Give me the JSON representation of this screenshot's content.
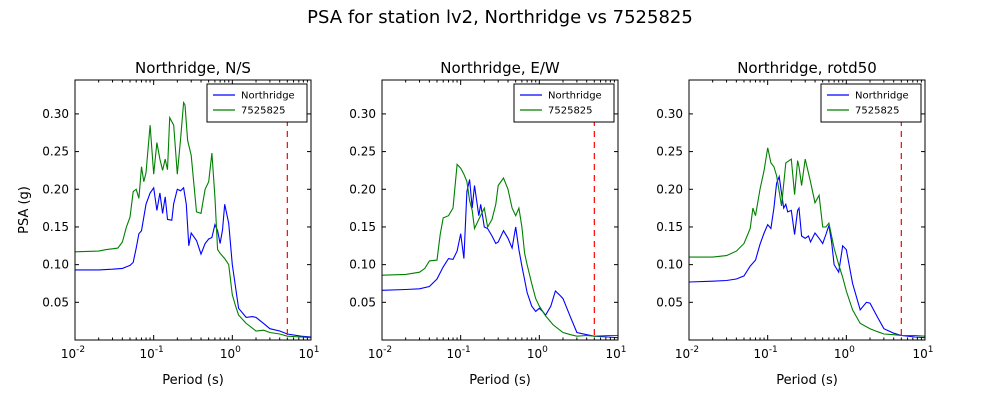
{
  "suptitle": "PSA for station lv2, Northridge vs 7525825",
  "ylabel": "PSA (g)",
  "xlabel": "Period (s)",
  "colors": {
    "series1": "#0000ff",
    "series2": "#008000",
    "marker": "#ff0000"
  },
  "series_names": [
    "Northridge",
    "7525825"
  ],
  "chart_data": [
    {
      "type": "line",
      "title": "Northridge, N/S",
      "xlabel": "Period (s)",
      "ylabel": "PSA (g)",
      "xscale": "log",
      "xlim": [
        0.01,
        10
      ],
      "ylim": [
        0.0,
        0.345
      ],
      "xticks": [
        0.01,
        0.1,
        1,
        10
      ],
      "yticks": [
        0.05,
        0.1,
        0.15,
        0.2,
        0.25,
        0.3
      ],
      "ytick_labels": [
        "0.05",
        "0.10",
        "0.15",
        "0.20",
        "0.25",
        "0.30"
      ],
      "legend": "top-right",
      "marker_x": 5.0,
      "series": [
        {
          "name": "Northridge",
          "x": [
            0.01,
            0.02,
            0.03,
            0.04,
            0.05,
            0.055,
            0.06,
            0.065,
            0.07,
            0.08,
            0.09,
            0.1,
            0.11,
            0.12,
            0.13,
            0.14,
            0.15,
            0.17,
            0.18,
            0.2,
            0.22,
            0.24,
            0.26,
            0.28,
            0.3,
            0.35,
            0.4,
            0.45,
            0.5,
            0.55,
            0.6,
            0.65,
            0.7,
            0.75,
            0.8,
            0.9,
            1.0,
            1.2,
            1.5,
            1.8,
            2.0,
            2.5,
            3.0,
            4.0,
            5.0,
            7.5,
            10.0
          ],
          "y": [
            0.093,
            0.093,
            0.094,
            0.095,
            0.099,
            0.103,
            0.122,
            0.141,
            0.145,
            0.18,
            0.195,
            0.202,
            0.172,
            0.195,
            0.168,
            0.19,
            0.16,
            0.159,
            0.181,
            0.2,
            0.198,
            0.202,
            0.18,
            0.125,
            0.142,
            0.132,
            0.114,
            0.128,
            0.134,
            0.136,
            0.153,
            0.145,
            0.128,
            0.146,
            0.18,
            0.155,
            0.1,
            0.042,
            0.03,
            0.031,
            0.03,
            0.022,
            0.015,
            0.012,
            0.008,
            0.005,
            0.004
          ]
        },
        {
          "name": "7525825",
          "x": [
            0.01,
            0.02,
            0.025,
            0.03,
            0.035,
            0.04,
            0.045,
            0.05,
            0.055,
            0.06,
            0.065,
            0.07,
            0.075,
            0.08,
            0.09,
            0.1,
            0.11,
            0.12,
            0.13,
            0.14,
            0.15,
            0.16,
            0.18,
            0.2,
            0.22,
            0.24,
            0.25,
            0.27,
            0.3,
            0.35,
            0.4,
            0.45,
            0.5,
            0.55,
            0.6,
            0.65,
            0.7,
            0.8,
            0.9,
            1.0,
            1.1,
            1.2,
            1.5,
            2.0,
            2.5,
            3.0,
            4.0,
            5.0,
            7.5,
            10.0
          ],
          "y": [
            0.117,
            0.118,
            0.12,
            0.121,
            0.122,
            0.13,
            0.15,
            0.163,
            0.197,
            0.2,
            0.188,
            0.23,
            0.21,
            0.222,
            0.285,
            0.22,
            0.262,
            0.24,
            0.225,
            0.24,
            0.226,
            0.295,
            0.285,
            0.22,
            0.267,
            0.315,
            0.312,
            0.265,
            0.245,
            0.17,
            0.168,
            0.2,
            0.21,
            0.248,
            0.19,
            0.12,
            0.115,
            0.108,
            0.1,
            0.06,
            0.045,
            0.033,
            0.022,
            0.012,
            0.013,
            0.01,
            0.008,
            0.005,
            0.004,
            0.003
          ]
        }
      ]
    },
    {
      "type": "line",
      "title": "Northridge, E/W",
      "xlabel": "Period (s)",
      "xscale": "log",
      "xlim": [
        0.01,
        10
      ],
      "ylim": [
        0.0,
        0.345
      ],
      "xticks": [
        0.01,
        0.1,
        1,
        10
      ],
      "yticks": [
        0.05,
        0.1,
        0.15,
        0.2,
        0.25,
        0.3
      ],
      "ytick_labels": [
        "0.05",
        "0.10",
        "0.15",
        "0.20",
        "0.25",
        "0.30"
      ],
      "legend": "top-right",
      "marker_x": 5.0,
      "series": [
        {
          "name": "Northridge",
          "x": [
            0.01,
            0.02,
            0.03,
            0.04,
            0.05,
            0.06,
            0.07,
            0.08,
            0.09,
            0.1,
            0.11,
            0.12,
            0.13,
            0.14,
            0.15,
            0.17,
            0.18,
            0.2,
            0.22,
            0.25,
            0.28,
            0.3,
            0.35,
            0.4,
            0.45,
            0.5,
            0.55,
            0.6,
            0.65,
            0.7,
            0.8,
            0.9,
            1.0,
            1.1,
            1.2,
            1.4,
            1.6,
            1.8,
            2.0,
            2.5,
            3.0,
            4.0,
            5.0,
            7.5,
            10.0
          ],
          "y": [
            0.066,
            0.067,
            0.068,
            0.071,
            0.081,
            0.097,
            0.108,
            0.107,
            0.118,
            0.141,
            0.108,
            0.197,
            0.213,
            0.175,
            0.205,
            0.165,
            0.18,
            0.15,
            0.148,
            0.138,
            0.128,
            0.13,
            0.145,
            0.135,
            0.122,
            0.15,
            0.12,
            0.098,
            0.08,
            0.063,
            0.045,
            0.038,
            0.042,
            0.038,
            0.033,
            0.045,
            0.065,
            0.06,
            0.055,
            0.03,
            0.01,
            0.007,
            0.005,
            0.004,
            0.003
          ]
        },
        {
          "name": "7525825",
          "x": [
            0.01,
            0.02,
            0.03,
            0.035,
            0.04,
            0.05,
            0.055,
            0.06,
            0.07,
            0.08,
            0.09,
            0.1,
            0.11,
            0.12,
            0.13,
            0.14,
            0.15,
            0.17,
            0.2,
            0.22,
            0.25,
            0.28,
            0.3,
            0.35,
            0.4,
            0.45,
            0.5,
            0.55,
            0.6,
            0.65,
            0.7,
            0.8,
            0.9,
            1.0,
            1.2,
            1.5,
            2.0,
            2.5,
            3.0,
            4.0,
            5.0,
            7.5,
            10.0
          ],
          "y": [
            0.086,
            0.087,
            0.09,
            0.095,
            0.105,
            0.106,
            0.14,
            0.162,
            0.165,
            0.175,
            0.233,
            0.228,
            0.22,
            0.21,
            0.185,
            0.172,
            0.148,
            0.16,
            0.175,
            0.15,
            0.16,
            0.18,
            0.205,
            0.215,
            0.2,
            0.175,
            0.165,
            0.175,
            0.15,
            0.115,
            0.1,
            0.075,
            0.055,
            0.045,
            0.032,
            0.02,
            0.01,
            0.007,
            0.005,
            0.006,
            0.005,
            0.006,
            0.006
          ]
        }
      ]
    },
    {
      "type": "line",
      "title": "Northridge, rotd50",
      "xlabel": "Period (s)",
      "xscale": "log",
      "xlim": [
        0.01,
        10
      ],
      "ylim": [
        0.0,
        0.345
      ],
      "xticks": [
        0.01,
        0.1,
        1,
        10
      ],
      "yticks": [
        0.05,
        0.1,
        0.15,
        0.2,
        0.25,
        0.3
      ],
      "ytick_labels": [
        "0.05",
        "0.10",
        "0.15",
        "0.20",
        "0.25",
        "0.30"
      ],
      "legend": "top-right",
      "marker_x": 5.0,
      "series": [
        {
          "name": "Northridge",
          "x": [
            0.01,
            0.02,
            0.03,
            0.04,
            0.05,
            0.06,
            0.07,
            0.08,
            0.09,
            0.1,
            0.11,
            0.12,
            0.13,
            0.14,
            0.15,
            0.16,
            0.17,
            0.18,
            0.2,
            0.22,
            0.24,
            0.25,
            0.27,
            0.3,
            0.33,
            0.35,
            0.4,
            0.45,
            0.5,
            0.55,
            0.6,
            0.65,
            0.7,
            0.8,
            0.9,
            1.0,
            1.2,
            1.5,
            1.8,
            2.0,
            2.5,
            3.0,
            4.0,
            5.0,
            7.5,
            10.0
          ],
          "y": [
            0.077,
            0.078,
            0.079,
            0.081,
            0.085,
            0.098,
            0.106,
            0.127,
            0.142,
            0.153,
            0.148,
            0.175,
            0.208,
            0.217,
            0.195,
            0.175,
            0.18,
            0.17,
            0.172,
            0.14,
            0.172,
            0.175,
            0.138,
            0.135,
            0.138,
            0.13,
            0.142,
            0.135,
            0.128,
            0.14,
            0.152,
            0.13,
            0.1,
            0.09,
            0.125,
            0.12,
            0.075,
            0.04,
            0.05,
            0.049,
            0.03,
            0.015,
            0.009,
            0.006,
            0.004,
            0.003
          ]
        },
        {
          "name": "7525825",
          "x": [
            0.01,
            0.02,
            0.03,
            0.04,
            0.05,
            0.06,
            0.065,
            0.07,
            0.08,
            0.09,
            0.1,
            0.11,
            0.12,
            0.13,
            0.14,
            0.15,
            0.17,
            0.2,
            0.22,
            0.24,
            0.25,
            0.27,
            0.3,
            0.35,
            0.4,
            0.45,
            0.5,
            0.55,
            0.6,
            0.7,
            0.8,
            0.9,
            1.0,
            1.2,
            1.5,
            2.0,
            2.5,
            3.0,
            4.0,
            5.0,
            7.5,
            10.0
          ],
          "y": [
            0.11,
            0.11,
            0.112,
            0.118,
            0.128,
            0.148,
            0.175,
            0.165,
            0.2,
            0.225,
            0.255,
            0.235,
            0.23,
            0.218,
            0.197,
            0.178,
            0.235,
            0.24,
            0.193,
            0.238,
            0.23,
            0.205,
            0.24,
            0.21,
            0.182,
            0.192,
            0.15,
            0.15,
            0.155,
            0.122,
            0.1,
            0.083,
            0.065,
            0.04,
            0.022,
            0.015,
            0.011,
            0.008,
            0.007,
            0.006,
            0.006,
            0.005
          ]
        }
      ]
    }
  ]
}
